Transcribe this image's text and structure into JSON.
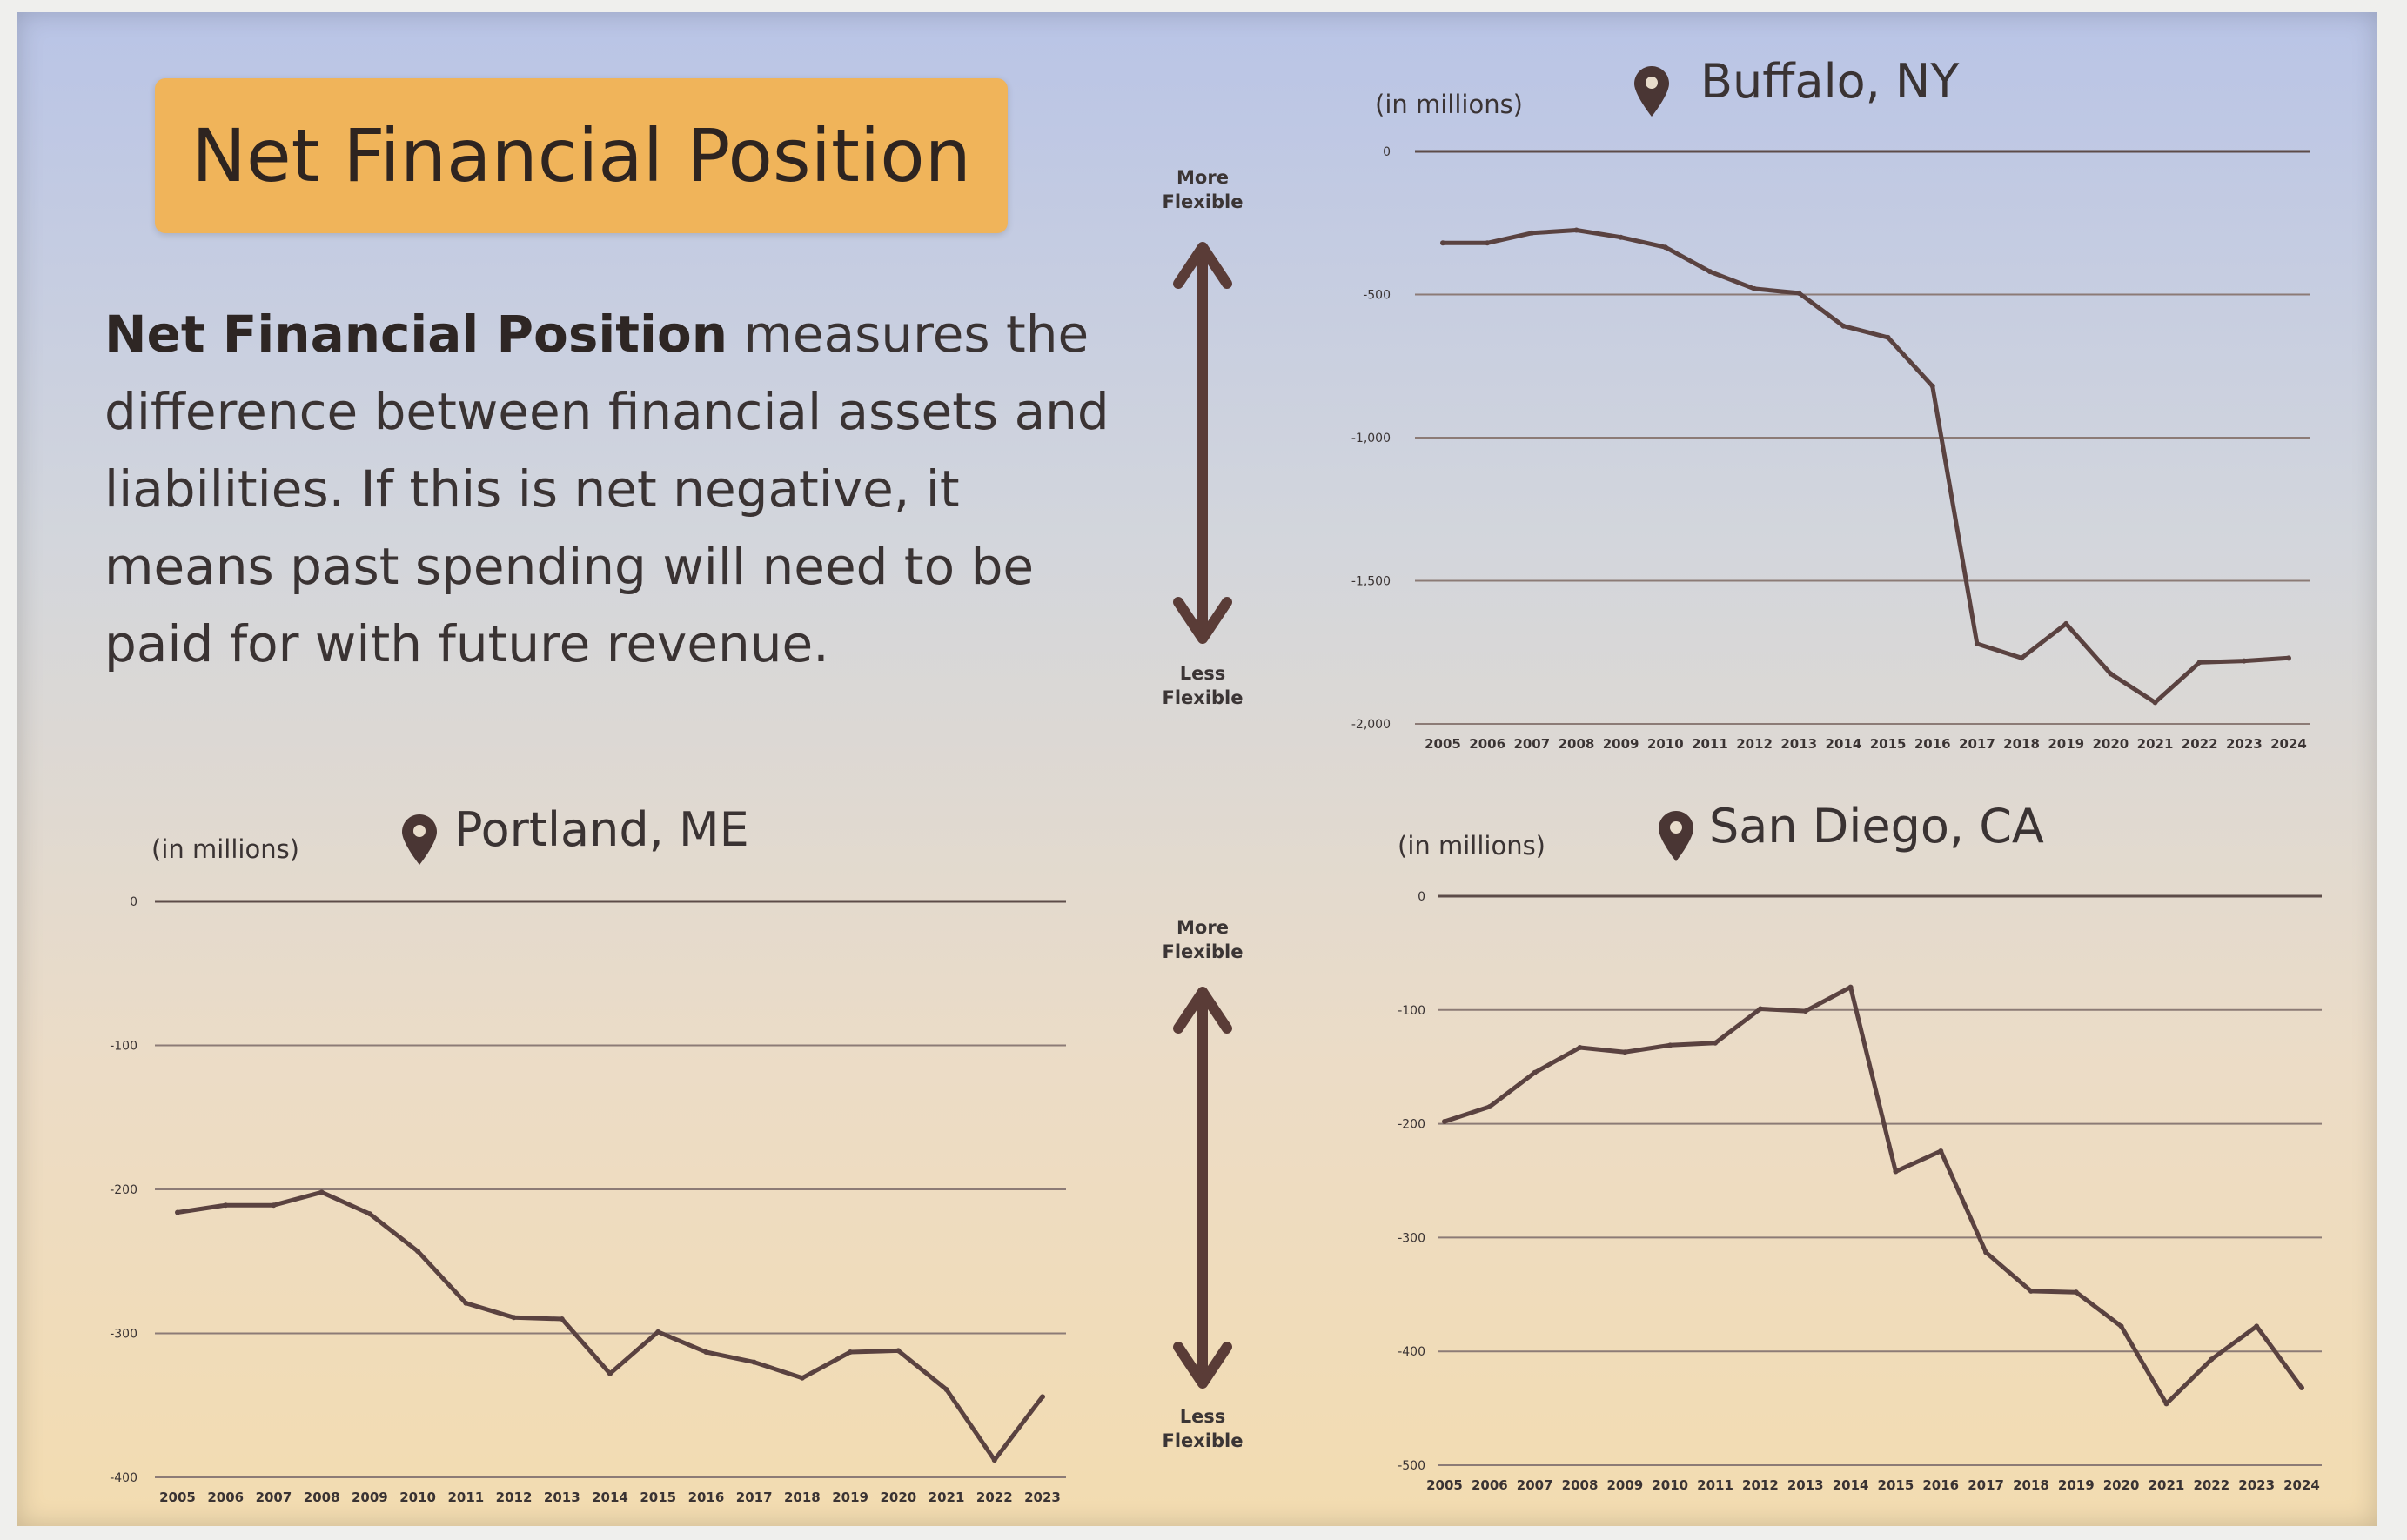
{
  "slide": {
    "title": "Net Financial Position",
    "description_bold": "Net Financial Position",
    "description_rest": " measures the difference between financial assets and liabilities. If this is net negative, it means past spending will need to be paid for with future revenue."
  },
  "flex_scale": {
    "top": {
      "more": "More",
      "flexible": "Flexible"
    },
    "bottom": {
      "less": "Less",
      "flexible": "Flexible"
    }
  },
  "colors": {
    "line": "#5a4240",
    "grid": "#8c7b76",
    "arrow": "#5a3c37",
    "title_bg": "#f0b45a",
    "text": "#3a3333"
  },
  "icons": {
    "location": "location-pin-icon",
    "scale_arrow": "double-headed-arrow-icon"
  },
  "chart_data": [
    {
      "id": "buffalo",
      "type": "line",
      "title": "Buffalo, NY",
      "unit_label": "(in millions)",
      "categories": [
        "2005",
        "2006",
        "2007",
        "2008",
        "2009",
        "2010",
        "2011",
        "2012",
        "2013",
        "2014",
        "2015",
        "2016",
        "2017",
        "2018",
        "2019",
        "2020",
        "2021",
        "2022",
        "2023",
        "2024"
      ],
      "values": [
        -320,
        -320,
        -285,
        -275,
        -300,
        -335,
        -420,
        -480,
        -495,
        -610,
        -650,
        -820,
        -1720,
        -1770,
        -1650,
        -1825,
        -1925,
        -1785,
        -1780,
        -1770
      ],
      "yticks": [
        0,
        -500,
        -1000,
        -1500,
        -2000
      ],
      "ytick_labels": [
        "0",
        "-500",
        "-1,000",
        "-1,500",
        "-2,000"
      ],
      "ylim": [
        -2000,
        0
      ],
      "grid": true
    },
    {
      "id": "portland",
      "type": "line",
      "title": "Portland, ME",
      "unit_label": "(in millions)",
      "categories": [
        "2005",
        "2006",
        "2007",
        "2008",
        "2009",
        "2010",
        "2011",
        "2012",
        "2013",
        "2014",
        "2015",
        "2016",
        "2017",
        "2018",
        "2019",
        "2020",
        "2021",
        "2022",
        "2023"
      ],
      "values": [
        -216,
        -211,
        -211,
        -202,
        -217,
        -243,
        -279,
        -289,
        -290,
        -328,
        -299,
        -313,
        -320,
        -331,
        -313,
        -312,
        -339,
        -388,
        -344
      ],
      "yticks": [
        0,
        -100,
        -200,
        -300,
        -400
      ],
      "ytick_labels": [
        "0",
        "-100",
        "-200",
        "-300",
        "-400"
      ],
      "ylim": [
        -400,
        0
      ],
      "grid": true
    },
    {
      "id": "sandiego",
      "type": "line",
      "title": "San Diego, CA",
      "unit_label": "(in millions)",
      "categories": [
        "2005",
        "2006",
        "2007",
        "2008",
        "2009",
        "2010",
        "2011",
        "2012",
        "2013",
        "2014",
        "2015",
        "2016",
        "2017",
        "2018",
        "2019",
        "2020",
        "2021",
        "2022",
        "2023",
        "2024"
      ],
      "values": [
        -198,
        -185,
        -155,
        -133,
        -137,
        -131,
        -129,
        -99,
        -101,
        -80,
        -242,
        -224,
        -313,
        -347,
        -348,
        -378,
        -446,
        -407,
        -378,
        -432
      ],
      "yticks": [
        0,
        -100,
        -200,
        -300,
        -400,
        -500
      ],
      "ytick_labels": [
        "0",
        "-100",
        "-200",
        "-300",
        "-400",
        "-500"
      ],
      "ylim": [
        -500,
        0
      ],
      "grid": true
    }
  ]
}
